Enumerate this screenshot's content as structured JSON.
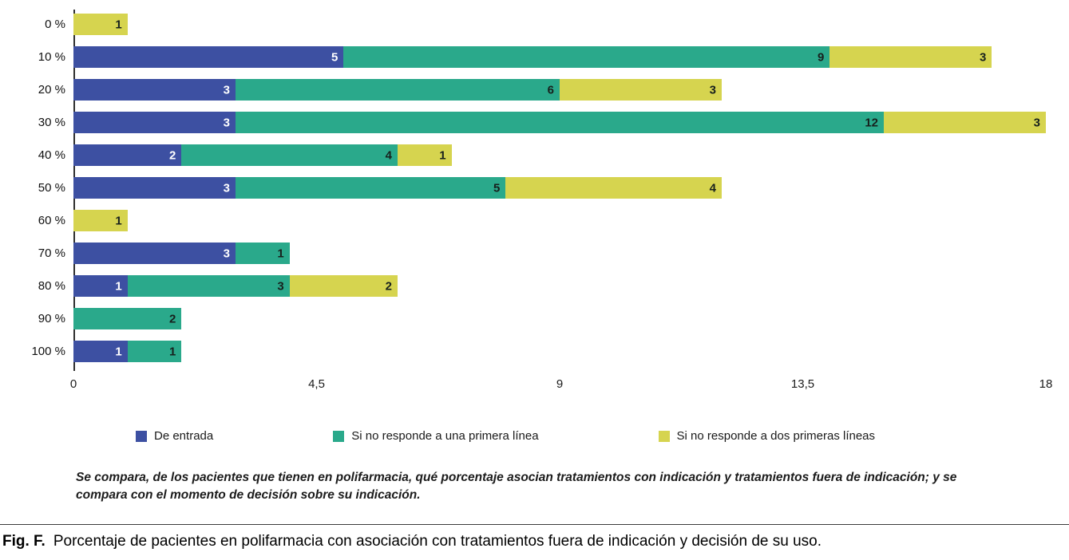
{
  "chart_data": {
    "type": "bar",
    "orientation": "horizontal",
    "stacked": true,
    "title": "",
    "xlabel": "",
    "ylabel": "",
    "xlim": [
      0,
      18
    ],
    "x_ticks": [
      "0",
      "4,5",
      "9",
      "13,5",
      "18"
    ],
    "grid": false,
    "legend_position": "bottom",
    "categories": [
      "0 %",
      "10 %",
      "20 %",
      "30 %",
      "40 %",
      "50 %",
      "60 %",
      "70 %",
      "80 %",
      "90 %",
      "100 %"
    ],
    "series": [
      {
        "name": "De entrada",
        "color": "#3d50a2",
        "label_color": "light",
        "values": [
          0,
          5,
          3,
          3,
          2,
          3,
          0,
          3,
          1,
          0,
          1
        ]
      },
      {
        "name": "Si no responde a una primera línea",
        "color": "#2aa98b",
        "label_color": "dark",
        "values": [
          0,
          9,
          6,
          12,
          4,
          5,
          0,
          1,
          3,
          2,
          1
        ]
      },
      {
        "name": "Si no responde a dos primeras líneas",
        "color": "#d6d44f",
        "label_color": "dark",
        "values": [
          1,
          3,
          3,
          3,
          1,
          4,
          1,
          0,
          2,
          0,
          0
        ]
      }
    ]
  },
  "note": {
    "text": "Se compara, de los pacientes que tienen en polifarmacia, qué porcentaje asocian tratamientos con indicación y tratamientos fuera de indicación; y se compara con el momento de decisión sobre su indicación."
  },
  "caption": {
    "label": "Fig. F.",
    "text": "Porcentaje de pacientes en polifarmacia con asociación con tratamientos fuera de indicación y decisión de su uso."
  }
}
